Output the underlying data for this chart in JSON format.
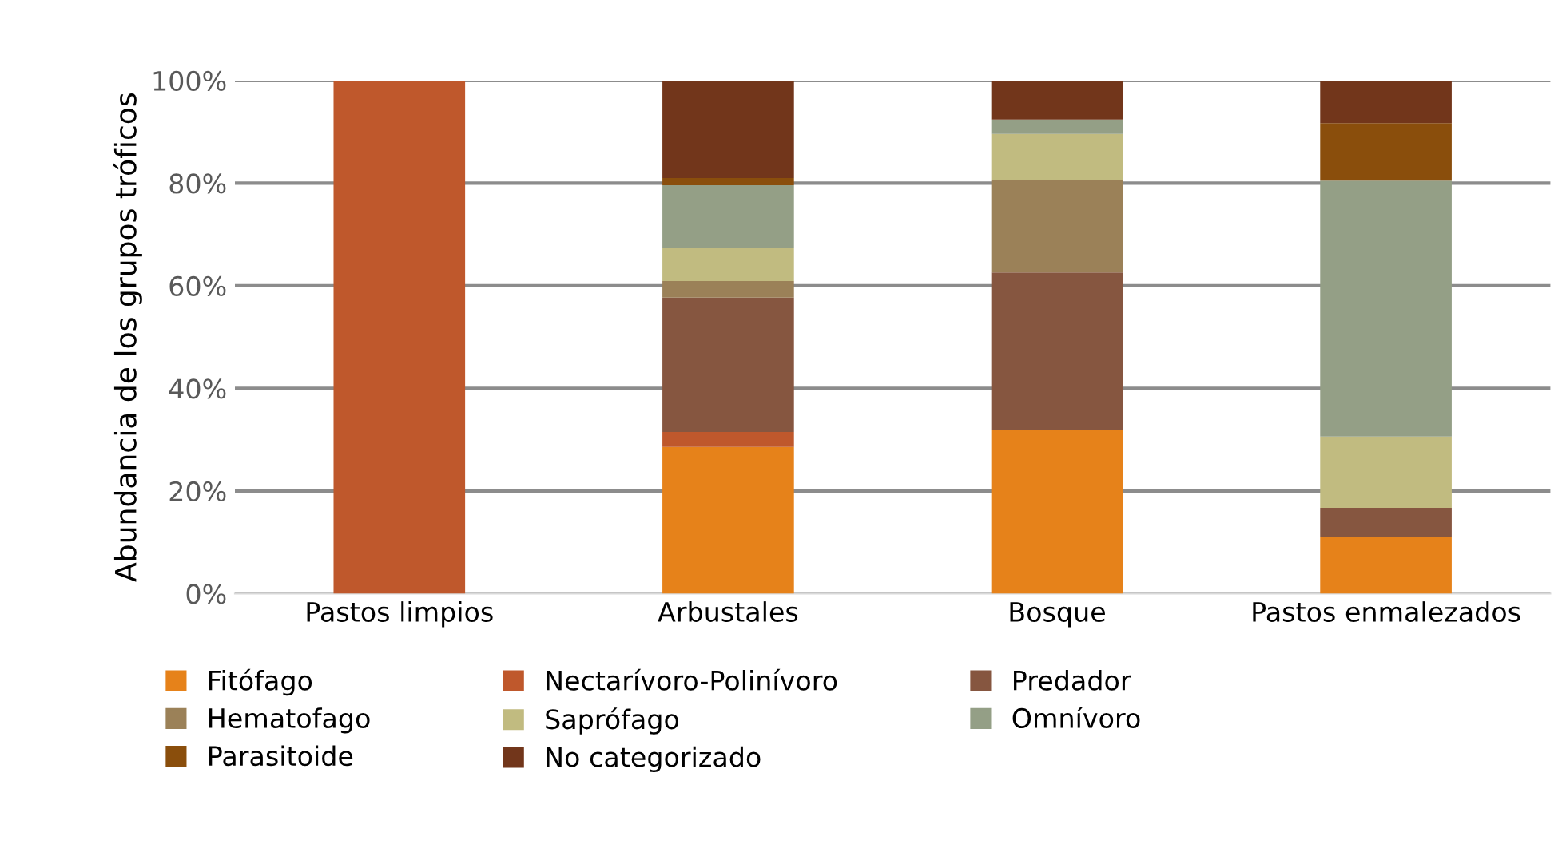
{
  "chart_data": {
    "type": "bar",
    "stacked": true,
    "ylabel": "Abundancia de los grupos tróficos",
    "categories": [
      "Pastos limpios",
      "Arbustales",
      "Bosque",
      "Pastos enmalezados"
    ],
    "series": [
      {
        "name": "Fitófago",
        "color": "#e6821a",
        "values": [
          0,
          28.6,
          31.8,
          11.0
        ]
      },
      {
        "name": "Nectarívoro-Polinívoro",
        "color": "#bf582c",
        "values": [
          100,
          2.9,
          0,
          0
        ]
      },
      {
        "name": "Predador",
        "color": "#865640",
        "values": [
          0,
          26.2,
          30.8,
          5.7
        ]
      },
      {
        "name": "Hematofago",
        "color": "#9b8158",
        "values": [
          0,
          3.2,
          18.0,
          0
        ]
      },
      {
        "name": "Saprófago",
        "color": "#c1bb80",
        "values": [
          0,
          6.4,
          9.0,
          13.9
        ]
      },
      {
        "name": "Omnívoro",
        "color": "#949f86",
        "values": [
          0,
          12.3,
          2.8,
          49.9
        ]
      },
      {
        "name": "Parasitoide",
        "color": "#8a4e0c",
        "values": [
          0,
          1.4,
          0,
          11.2
        ]
      },
      {
        "name": "No categorizado",
        "color": "#72361b",
        "values": [
          0,
          19.0,
          7.6,
          8.3
        ]
      }
    ],
    "ylim": [
      0,
      100
    ],
    "yticks": [
      {
        "value": 0,
        "label": "0%"
      },
      {
        "value": 20,
        "label": "20%"
      },
      {
        "value": 40,
        "label": "40%"
      },
      {
        "value": 60,
        "label": "60%"
      },
      {
        "value": 80,
        "label": "80%"
      },
      {
        "value": 100,
        "label": "100%"
      }
    ],
    "grid": "y",
    "legend": "bottom"
  }
}
